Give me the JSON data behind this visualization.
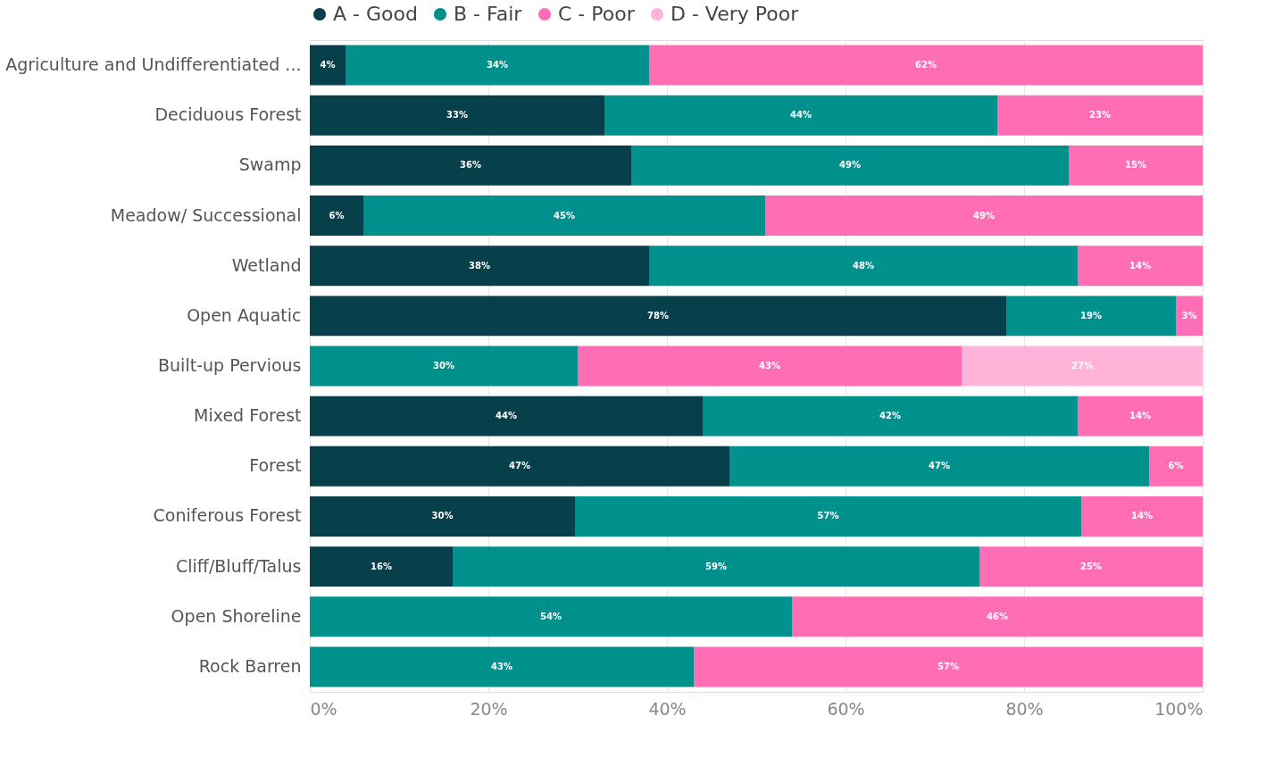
{
  "chart_data": {
    "type": "bar",
    "orientation": "horizontal",
    "stacked": true,
    "categories": [
      "Agriculture and Undifferentiated ...",
      "Deciduous Forest",
      "Swamp",
      "Meadow/ Successional",
      "Wetland",
      "Open Aquatic",
      "Built-up Pervious",
      "Mixed Forest",
      "Forest",
      "Coniferous Forest",
      "Cliff/Bluff/Talus",
      "Open Shoreline",
      "Rock Barren"
    ],
    "series": [
      {
        "name": "A - Good",
        "color": "#073f4b",
        "values": [
          4,
          33,
          36,
          6,
          38,
          78,
          null,
          44,
          47,
          29.7,
          16,
          null,
          null
        ],
        "value_labels": [
          "4%",
          "33%",
          "36%",
          "6%",
          "38%",
          "78%",
          null,
          "44%",
          "47%",
          "30%",
          "16%",
          null,
          null
        ]
      },
      {
        "name": "B - Fair",
        "color": "#00918d",
        "values": [
          34,
          44,
          49,
          45,
          48,
          19,
          30,
          42,
          47,
          56.7,
          59,
          54,
          43
        ],
        "value_labels": [
          "34%",
          "44%",
          "49%",
          "45%",
          "48%",
          "19%",
          "30%",
          "42%",
          "47%",
          "57%",
          "59%",
          "54%",
          "43%"
        ]
      },
      {
        "name": "C - Poor",
        "color": "#ff6eb4",
        "values": [
          62,
          23,
          15,
          49,
          14,
          3,
          43,
          14,
          6,
          13.6,
          25,
          46,
          57
        ],
        "value_labels": [
          "62%",
          "23%",
          "15%",
          "49%",
          "14%",
          "3%",
          "43%",
          "14%",
          "6%",
          "14%",
          "25%",
          "46%",
          "57%"
        ]
      },
      {
        "name": "D - Very Poor",
        "color": "#ffb3d9",
        "values": [
          null,
          null,
          null,
          null,
          null,
          null,
          27,
          null,
          null,
          null,
          null,
          null,
          null
        ],
        "value_labels": [
          null,
          null,
          null,
          null,
          null,
          null,
          "27%",
          null,
          null,
          null,
          null,
          null,
          null
        ]
      }
    ],
    "xlim": [
      0,
      100
    ],
    "xticks": [
      {
        "value": 0,
        "label": "0%"
      },
      {
        "value": 20,
        "label": "20%"
      },
      {
        "value": 40,
        "label": "40%"
      },
      {
        "value": 60,
        "label": "60%"
      },
      {
        "value": 80,
        "label": "80%"
      },
      {
        "value": 100,
        "label": "100%"
      }
    ],
    "grid": "x",
    "legend": "top"
  }
}
